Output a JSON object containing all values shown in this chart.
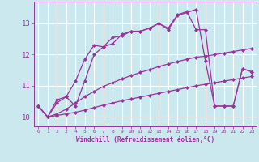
{
  "xlabel": "Windchill (Refroidissement éolien,°C)",
  "bg_color": "#cce8ef",
  "line_color": "#993399",
  "grid_color": "#ffffff",
  "xlim": [
    -0.5,
    23.5
  ],
  "ylim": [
    9.7,
    13.7
  ],
  "yticks": [
    10,
    11,
    12,
    13
  ],
  "xticks": [
    0,
    1,
    2,
    3,
    4,
    5,
    6,
    7,
    8,
    9,
    10,
    11,
    12,
    13,
    14,
    15,
    16,
    17,
    18,
    19,
    20,
    21,
    22,
    23
  ],
  "line1_x": [
    0,
    1,
    2,
    3,
    4,
    5,
    6,
    7,
    8,
    9,
    10,
    11,
    12,
    13,
    14,
    15,
    16,
    17,
    18,
    19,
    20,
    21,
    22,
    23
  ],
  "line1_y": [
    10.35,
    10.0,
    10.05,
    10.1,
    10.15,
    10.22,
    10.3,
    10.38,
    10.45,
    10.52,
    10.58,
    10.64,
    10.7,
    10.76,
    10.82,
    10.88,
    10.94,
    11.0,
    11.05,
    11.1,
    11.15,
    11.2,
    11.25,
    11.3
  ],
  "line2_x": [
    0,
    1,
    2,
    3,
    4,
    5,
    6,
    7,
    8,
    9,
    10,
    11,
    12,
    13,
    14,
    15,
    16,
    17,
    18,
    19,
    20,
    21,
    22,
    23
  ],
  "line2_y": [
    10.35,
    10.0,
    10.1,
    10.25,
    10.45,
    10.65,
    10.82,
    10.98,
    11.1,
    11.22,
    11.33,
    11.43,
    11.52,
    11.62,
    11.7,
    11.78,
    11.85,
    11.92,
    11.95,
    12.0,
    12.05,
    12.1,
    12.15,
    12.2
  ],
  "line3_x": [
    0,
    1,
    2,
    3,
    4,
    5,
    6,
    7,
    8,
    9,
    10,
    11,
    12,
    13,
    14,
    15,
    16,
    17,
    18,
    19,
    20,
    21,
    22,
    23
  ],
  "line3_y": [
    10.35,
    10.0,
    10.45,
    10.65,
    10.35,
    11.15,
    12.0,
    12.25,
    12.35,
    12.65,
    12.75,
    12.75,
    12.85,
    13.0,
    12.8,
    13.25,
    13.35,
    13.45,
    11.8,
    10.35,
    10.35,
    10.35,
    11.55,
    11.45
  ],
  "line4_x": [
    0,
    1,
    2,
    3,
    4,
    5,
    6,
    7,
    8,
    9,
    10,
    11,
    12,
    13,
    14,
    15,
    16,
    17,
    18,
    19,
    20,
    21,
    22,
    23
  ],
  "line4_y": [
    10.35,
    10.0,
    10.55,
    10.65,
    11.15,
    11.85,
    12.3,
    12.25,
    12.55,
    12.6,
    12.75,
    12.75,
    12.85,
    13.0,
    12.85,
    13.28,
    13.38,
    12.8,
    12.8,
    10.35,
    10.35,
    10.35,
    11.55,
    11.45
  ],
  "marker": "D",
  "markersize": 2,
  "linewidth": 0.9
}
